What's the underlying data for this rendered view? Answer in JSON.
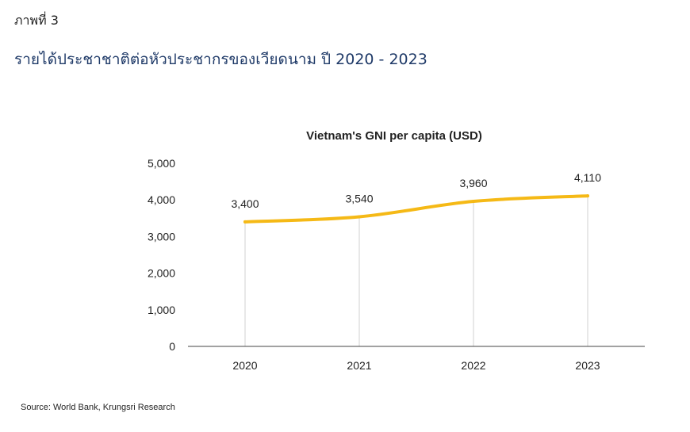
{
  "figure_label": "ภาพที่ 3",
  "figure_title": "รายได้ประชาชาติต่อหัวประชากรของเวียดนาม ปี 2020 - 2023",
  "source": "Source: World Bank, Krungsri Research",
  "colors": {
    "line": "#f5b916",
    "title": "#1f3a68",
    "gridline": "#d0d0d0",
    "axis": "#444444"
  },
  "chart_data": {
    "type": "line",
    "title": "Vietnam's GNI per capita (USD)",
    "x": [
      "2020",
      "2021",
      "2022",
      "2023"
    ],
    "values": [
      3400,
      3540,
      3960,
      4110
    ],
    "data_labels": [
      "3,400",
      "3,540",
      "3,960",
      "4,110"
    ],
    "yticks": [
      0,
      1000,
      2000,
      3000,
      4000,
      5000
    ],
    "ytick_labels": [
      "0",
      "1,000",
      "2,000",
      "3,000",
      "4,000",
      "5,000"
    ],
    "ylim": [
      0,
      5000
    ],
    "xlabel": "",
    "ylabel": "",
    "grid": "vertical",
    "smooth": true
  }
}
